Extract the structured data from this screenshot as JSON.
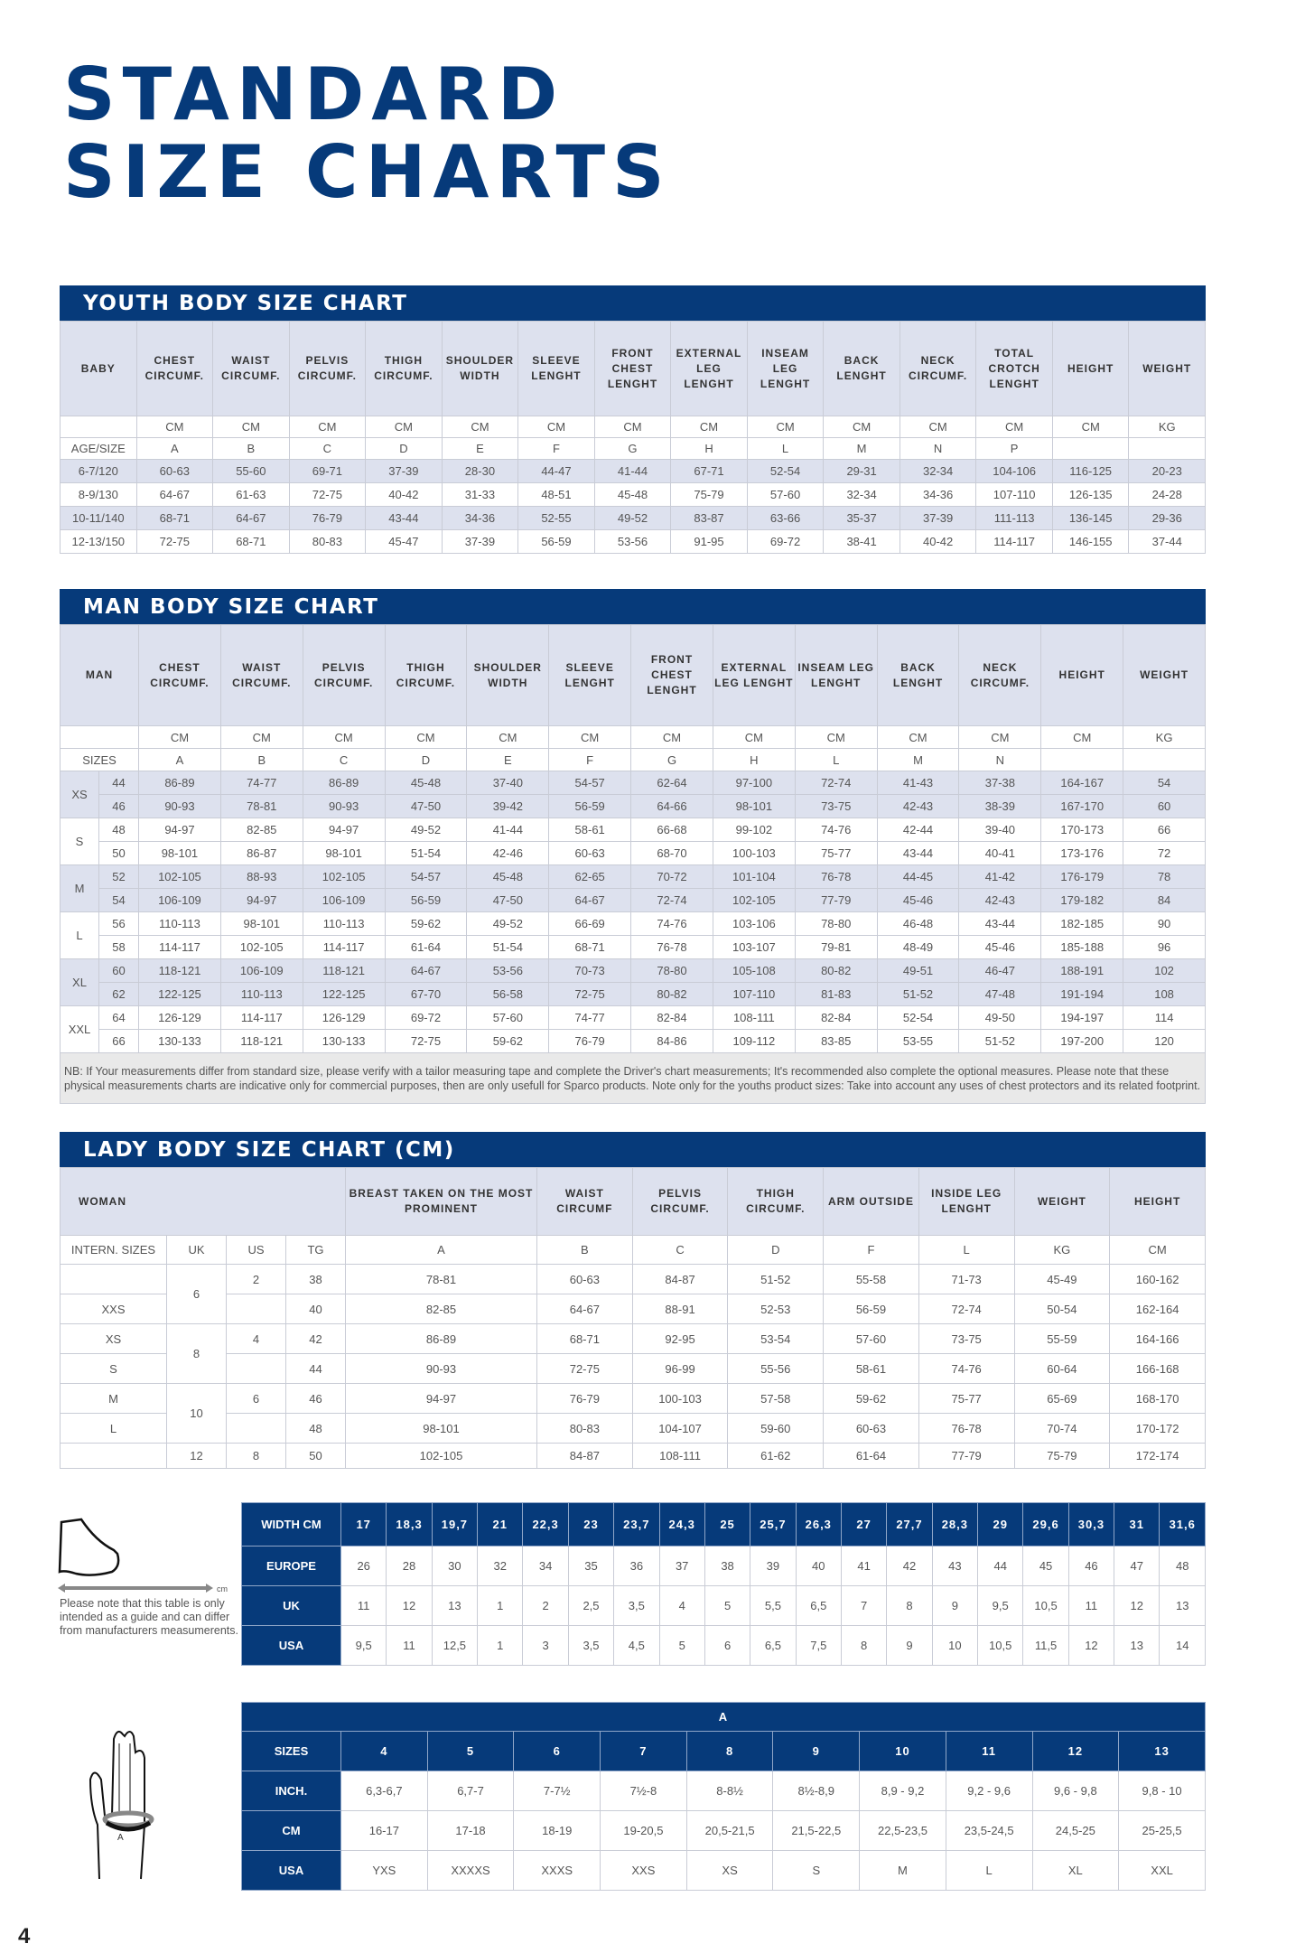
{
  "title": {
    "line1": "STANDARD",
    "line2": "SIZE CHARTS"
  },
  "youth": {
    "title": "YOUTH BODY SIZE CHART",
    "headers": [
      "BABY",
      "CHEST CIRCUMF.",
      "WAIST CIRCUMF.",
      "PELVIS CIRCUMF.",
      "THIGH CIRCUMF.",
      "SHOULDER WIDTH",
      "SLEEVE LENGHT",
      "FRONT CHEST LENGHT",
      "EXTERNAL LEG LENGHT",
      "INSEAM LEG LENGHT",
      "BACK LENGHT",
      "NECK CIRCUMF.",
      "TOTAL CROTCH LENGHT",
      "HEIGHT",
      "WEIGHT"
    ],
    "units": [
      "",
      "CM",
      "CM",
      "CM",
      "CM",
      "CM",
      "CM",
      "CM",
      "CM",
      "CM",
      "CM",
      "CM",
      "CM",
      "CM",
      "KG"
    ],
    "letters": [
      "AGE/SIZE",
      "A",
      "B",
      "C",
      "D",
      "E",
      "F",
      "G",
      "H",
      "L",
      "M",
      "N",
      "P",
      "",
      ""
    ],
    "rows": [
      [
        "6-7/120",
        "60-63",
        "55-60",
        "69-71",
        "37-39",
        "28-30",
        "44-47",
        "41-44",
        "67-71",
        "52-54",
        "29-31",
        "32-34",
        "104-106",
        "116-125",
        "20-23"
      ],
      [
        "8-9/130",
        "64-67",
        "61-63",
        "72-75",
        "40-42",
        "31-33",
        "48-51",
        "45-48",
        "75-79",
        "57-60",
        "32-34",
        "34-36",
        "107-110",
        "126-135",
        "24-28"
      ],
      [
        "10-11/140",
        "68-71",
        "64-67",
        "76-79",
        "43-44",
        "34-36",
        "52-55",
        "49-52",
        "83-87",
        "63-66",
        "35-37",
        "37-39",
        "111-113",
        "136-145",
        "29-36"
      ],
      [
        "12-13/150",
        "72-75",
        "68-71",
        "80-83",
        "45-47",
        "37-39",
        "56-59",
        "53-56",
        "91-95",
        "69-72",
        "38-41",
        "40-42",
        "114-117",
        "146-155",
        "37-44"
      ]
    ]
  },
  "man": {
    "title": "MAN BODY SIZE CHART",
    "headers": [
      "MAN",
      "CHEST CIRCUMF.",
      "WAIST CIRCUMF.",
      "PELVIS CIRCUMF.",
      "THIGH CIRCUMF.",
      "SHOULDER WIDTH",
      "SLEEVE LENGHT",
      "FRONT CHEST LENGHT",
      "EXTERNAL LEG LENGHT",
      "INSEAM LEG LENGHT",
      "BACK LENGHT",
      "NECK CIRCUMF.",
      "HEIGHT",
      "WEIGHT"
    ],
    "units": [
      "",
      "CM",
      "CM",
      "CM",
      "CM",
      "CM",
      "CM",
      "CM",
      "CM",
      "CM",
      "CM",
      "CM",
      "CM",
      "KG"
    ],
    "letters": [
      "SIZES",
      "A",
      "B",
      "C",
      "D",
      "E",
      "F",
      "G",
      "H",
      "L",
      "M",
      "N",
      "",
      ""
    ],
    "groups": [
      {
        "size": "XS",
        "rows": [
          [
            "44",
            "86-89",
            "74-77",
            "86-89",
            "45-48",
            "37-40",
            "54-57",
            "62-64",
            "97-100",
            "72-74",
            "41-43",
            "37-38",
            "164-167",
            "54"
          ],
          [
            "46",
            "90-93",
            "78-81",
            "90-93",
            "47-50",
            "39-42",
            "56-59",
            "64-66",
            "98-101",
            "73-75",
            "42-43",
            "38-39",
            "167-170",
            "60"
          ]
        ]
      },
      {
        "size": "S",
        "rows": [
          [
            "48",
            "94-97",
            "82-85",
            "94-97",
            "49-52",
            "41-44",
            "58-61",
            "66-68",
            "99-102",
            "74-76",
            "42-44",
            "39-40",
            "170-173",
            "66"
          ],
          [
            "50",
            "98-101",
            "86-87",
            "98-101",
            "51-54",
            "42-46",
            "60-63",
            "68-70",
            "100-103",
            "75-77",
            "43-44",
            "40-41",
            "173-176",
            "72"
          ]
        ]
      },
      {
        "size": "M",
        "rows": [
          [
            "52",
            "102-105",
            "88-93",
            "102-105",
            "54-57",
            "45-48",
            "62-65",
            "70-72",
            "101-104",
            "76-78",
            "44-45",
            "41-42",
            "176-179",
            "78"
          ],
          [
            "54",
            "106-109",
            "94-97",
            "106-109",
            "56-59",
            "47-50",
            "64-67",
            "72-74",
            "102-105",
            "77-79",
            "45-46",
            "42-43",
            "179-182",
            "84"
          ]
        ]
      },
      {
        "size": "L",
        "rows": [
          [
            "56",
            "110-113",
            "98-101",
            "110-113",
            "59-62",
            "49-52",
            "66-69",
            "74-76",
            "103-106",
            "78-80",
            "46-48",
            "43-44",
            "182-185",
            "90"
          ],
          [
            "58",
            "114-117",
            "102-105",
            "114-117",
            "61-64",
            "51-54",
            "68-71",
            "76-78",
            "103-107",
            "79-81",
            "48-49",
            "45-46",
            "185-188",
            "96"
          ]
        ]
      },
      {
        "size": "XL",
        "rows": [
          [
            "60",
            "118-121",
            "106-109",
            "118-121",
            "64-67",
            "53-56",
            "70-73",
            "78-80",
            "105-108",
            "80-82",
            "49-51",
            "46-47",
            "188-191",
            "102"
          ],
          [
            "62",
            "122-125",
            "110-113",
            "122-125",
            "67-70",
            "56-58",
            "72-75",
            "80-82",
            "107-110",
            "81-83",
            "51-52",
            "47-48",
            "191-194",
            "108"
          ]
        ]
      },
      {
        "size": "XXL",
        "rows": [
          [
            "64",
            "126-129",
            "114-117",
            "126-129",
            "69-72",
            "57-60",
            "74-77",
            "82-84",
            "108-111",
            "82-84",
            "52-54",
            "49-50",
            "194-197",
            "114"
          ],
          [
            "66",
            "130-133",
            "118-121",
            "130-133",
            "72-75",
            "59-62",
            "76-79",
            "84-86",
            "109-112",
            "83-85",
            "53-55",
            "51-52",
            "197-200",
            "120"
          ]
        ]
      }
    ],
    "note": "NB: If Your measurements differ from standard size, please verify with a tailor measuring tape and complete the Driver's chart measurements; It's recommended also complete the optional measures. Please note that these physical measurements charts are indicative only for commercial purposes, then are only usefull for Sparco products. Note only for the youths product sizes: Take into account any uses of chest protectors and its related footprint."
  },
  "lady": {
    "title": "LADY BODY SIZE CHART (CM)",
    "woman_label": "WOMAN",
    "headers": [
      "BREAST TAKEN ON THE MOST PROMINENT",
      "WAIST CIRCUMF",
      "PELVIS CIRCUMF.",
      "THIGH CIRCUMF.",
      "ARM OUTSIDE",
      "INSIDE LEG LENGHT",
      "WEIGHT",
      "HEIGHT"
    ],
    "letters": [
      "INTERN. SIZES",
      "UK",
      "US",
      "TG",
      "A",
      "B",
      "C",
      "D",
      "F",
      "L",
      "KG",
      "CM"
    ],
    "rows": [
      {
        "intern": "",
        "uk": "6",
        "uk_span": 2,
        "us": "2",
        "tg": "38",
        "vals": [
          "78-81",
          "60-63",
          "84-87",
          "51-52",
          "55-58",
          "71-73",
          "45-49",
          "160-162"
        ]
      },
      {
        "intern": "XXS",
        "us": "",
        "tg": "40",
        "vals": [
          "82-85",
          "64-67",
          "88-91",
          "52-53",
          "56-59",
          "72-74",
          "50-54",
          "162-164"
        ]
      },
      {
        "intern": "XS",
        "uk": "8",
        "uk_span": 2,
        "us": "4",
        "tg": "42",
        "vals": [
          "86-89",
          "68-71",
          "92-95",
          "53-54",
          "57-60",
          "73-75",
          "55-59",
          "164-166"
        ]
      },
      {
        "intern": "S",
        "us": "",
        "tg": "44",
        "vals": [
          "90-93",
          "72-75",
          "96-99",
          "55-56",
          "58-61",
          "74-76",
          "60-64",
          "166-168"
        ]
      },
      {
        "intern": "M",
        "uk": "10",
        "uk_span": 2,
        "us": "6",
        "tg": "46",
        "vals": [
          "94-97",
          "76-79",
          "100-103",
          "57-58",
          "59-62",
          "75-77",
          "65-69",
          "168-170"
        ]
      },
      {
        "intern": "L",
        "us": "",
        "tg": "48",
        "vals": [
          "98-101",
          "80-83",
          "104-107",
          "59-60",
          "60-63",
          "76-78",
          "70-74",
          "170-172"
        ]
      },
      {
        "intern": "",
        "uk": "12",
        "uk_span": 1,
        "us": "8",
        "tg": "50",
        "vals": [
          "102-105",
          "84-87",
          "108-111",
          "61-62",
          "61-64",
          "77-79",
          "75-79",
          "172-174"
        ]
      }
    ]
  },
  "shoes": {
    "unit_label": "cm",
    "note": "Please note that this table is only intended as a guide and can differ from manufacturers measumerents.",
    "rows": [
      {
        "label": "WIDTH CM",
        "values": [
          "17",
          "18,3",
          "19,7",
          "21",
          "22,3",
          "23",
          "23,7",
          "24,3",
          "25",
          "25,7",
          "26,3",
          "27",
          "27,7",
          "28,3",
          "29",
          "29,6",
          "30,3",
          "31",
          "31,6"
        ]
      },
      {
        "label": "EUROPE",
        "values": [
          "26",
          "28",
          "30",
          "32",
          "34",
          "35",
          "36",
          "37",
          "38",
          "39",
          "40",
          "41",
          "42",
          "43",
          "44",
          "45",
          "46",
          "47",
          "48"
        ]
      },
      {
        "label": "UK",
        "values": [
          "11",
          "12",
          "13",
          "1",
          "2",
          "2,5",
          "3,5",
          "4",
          "5",
          "5,5",
          "6,5",
          "7",
          "8",
          "9",
          "9,5",
          "10,5",
          "11",
          "12",
          "13"
        ]
      },
      {
        "label": "USA",
        "values": [
          "9,5",
          "11",
          "12,5",
          "1",
          "3",
          "3,5",
          "4,5",
          "5",
          "6",
          "6,5",
          "7,5",
          "8",
          "9",
          "10",
          "10,5",
          "11,5",
          "12",
          "13",
          "14"
        ]
      }
    ]
  },
  "gloves": {
    "header": "A",
    "hand_label": "A",
    "rows": [
      {
        "label": "SIZES",
        "values": [
          "4",
          "5",
          "6",
          "7",
          "8",
          "9",
          "10",
          "11",
          "12",
          "13"
        ]
      },
      {
        "label": "INCH.",
        "values": [
          "6,3-6,7",
          "6,7-7",
          "7-7½",
          "7½-8",
          "8-8½",
          "8½-8,9",
          "8,9 - 9,2",
          "9,2 - 9,6",
          "9,6 - 9,8",
          "9,8 - 10"
        ]
      },
      {
        "label": "CM",
        "values": [
          "16-17",
          "17-18",
          "18-19",
          "19-20,5",
          "20,5-21,5",
          "21,5-22,5",
          "22,5-23,5",
          "23,5-24,5",
          "24,5-25",
          "25-25,5"
        ]
      },
      {
        "label": "USA",
        "values": [
          "YXS",
          "XXXXS",
          "XXXS",
          "XXS",
          "XS",
          "S",
          "M",
          "L",
          "XL",
          "XXL"
        ]
      }
    ]
  },
  "page_number": "4",
  "colors": {
    "brand_blue": "#063a7a",
    "header_shade": "#dde1ee",
    "note_bg": "#e9e9e9"
  }
}
